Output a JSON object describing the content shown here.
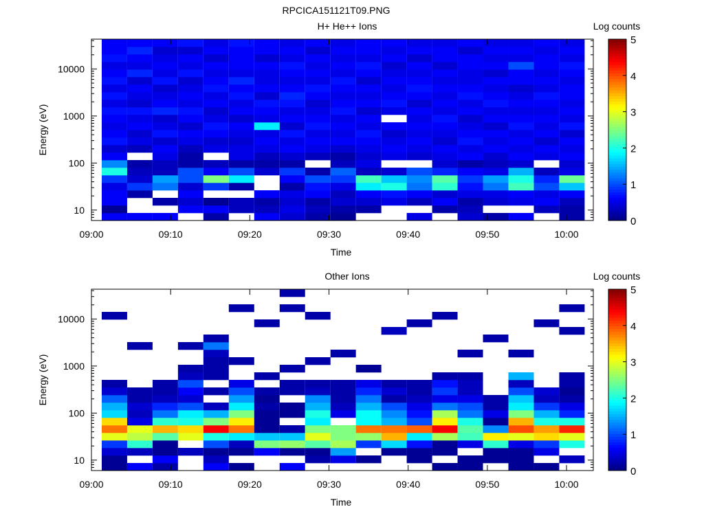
{
  "title": "RPCICA151121T09.PNG",
  "chart_data": [
    {
      "type": "heatmap",
      "title": "H+ He++ Ions",
      "xlabel": "Time",
      "ylabel": "Energy (eV)",
      "colorbar_label": "Log counts",
      "colorbar_ticks": [
        "0",
        "1",
        "2",
        "3",
        "4",
        "5"
      ],
      "clim": [
        0,
        5
      ],
      "x_ticks": [
        "09:00",
        "09:10",
        "09:20",
        "09:30",
        "09:40",
        "09:50",
        "10:00"
      ],
      "x_range_minutes_after_0900": [
        0,
        63.4
      ],
      "y_ticks": [
        "10",
        "100",
        "1000",
        "10000"
      ],
      "y_range_eV": [
        6,
        43000
      ],
      "y_scale": "log",
      "column_start_minutes": 1.3,
      "column_width_minutes": 3.21,
      "energy_bins": 24,
      "columns": [
        [
          0.6,
          0.1,
          0.6,
          0.6,
          0.5,
          0.9,
          2.0,
          1.3,
          0.6,
          0.4,
          0.7,
          0.6,
          0.5,
          0.6,
          0.7,
          0.5,
          0.7,
          0.5,
          0.7,
          0.6,
          0.5,
          0.7,
          0.6,
          0.6
        ],
        [
          0.6,
          null,
          null,
          0.2,
          0.9,
          0.4,
          0.3,
          0.2,
          null,
          0.3,
          0.5,
          0.4,
          0.6,
          0.5,
          0.7,
          0.4,
          0.5,
          0.6,
          0.4,
          0.8,
          0.5,
          0.6,
          0.8,
          0.6
        ],
        [
          0.6,
          null,
          0.2,
          null,
          1.2,
          1.4,
          0.3,
          0.3,
          0.5,
          0.6,
          0.4,
          0.7,
          0.5,
          0.4,
          0.8,
          0.6,
          0.5,
          0.4,
          0.7,
          0.5,
          0.6,
          0.5,
          0.4,
          0.6
        ],
        [
          null,
          0.6,
          0.4,
          0.6,
          0.4,
          1.0,
          1.0,
          0.2,
          0.2,
          0.3,
          0.5,
          0.6,
          0.4,
          0.6,
          0.7,
          0.5,
          0.6,
          0.5,
          0.4,
          0.7,
          0.5,
          0.6,
          0.4,
          0.7
        ],
        [
          0.2,
          0.6,
          0.1,
          null,
          0.9,
          2.5,
          0.6,
          0.3,
          null,
          0.5,
          0.4,
          0.6,
          0.7,
          0.5,
          0.4,
          0.6,
          0.5,
          0.7,
          0.6,
          0.5,
          0.6,
          0.4,
          0.6,
          0.5
        ],
        [
          null,
          0.3,
          0.3,
          null,
          0.2,
          1.8,
          1.0,
          0.2,
          0.5,
          0.5,
          0.4,
          0.5,
          0.6,
          0.4,
          0.6,
          0.5,
          0.7,
          0.6,
          0.8,
          0.5,
          0.6,
          0.6,
          0.6,
          0.7
        ],
        [
          0.6,
          0.3,
          0.2,
          0.6,
          null,
          null,
          0.4,
          0.2,
          0.3,
          0.5,
          0.6,
          0.5,
          1.8,
          0.5,
          0.6,
          0.7,
          0.4,
          0.6,
          0.5,
          0.5,
          0.6,
          0.4,
          0.6,
          0.6
        ],
        [
          0.4,
          0.5,
          0.4,
          0.5,
          0.2,
          0.6,
          0.9,
          0.2,
          0.4,
          0.6,
          0.5,
          0.7,
          0.4,
          0.6,
          0.5,
          0.7,
          0.8,
          0.6,
          0.5,
          0.6,
          0.7,
          0.5,
          0.6,
          0.5
        ],
        [
          0.2,
          0.3,
          0.2,
          0.6,
          0.7,
          1.0,
          0.2,
          null,
          0.3,
          0.5,
          0.6,
          0.5,
          0.7,
          0.6,
          0.5,
          0.4,
          0.6,
          0.7,
          0.5,
          0.6,
          0.5,
          0.6,
          0.4,
          0.6
        ],
        [
          0.1,
          0.2,
          0.4,
          0.3,
          0.5,
          0.9,
          1.1,
          0.3,
          0.2,
          0.4,
          0.6,
          0.5,
          0.6,
          0.5,
          0.7,
          0.6,
          0.5,
          0.6,
          0.7,
          0.5,
          0.6,
          0.5,
          0.6,
          0.5
        ],
        [
          null,
          0.2,
          0.4,
          0.6,
          1.8,
          2.2,
          0.3,
          0.5,
          0.4,
          0.5,
          0.6,
          0.7,
          0.5,
          0.6,
          0.4,
          0.6,
          0.5,
          0.6,
          0.4,
          0.6,
          0.7,
          0.5,
          0.6,
          0.6
        ],
        [
          null,
          null,
          0.5,
          0.7,
          2.0,
          1.6,
          0.4,
          null,
          0.5,
          0.6,
          0.5,
          0.4,
          0.6,
          null,
          0.5,
          0.7,
          0.6,
          0.5,
          0.6,
          0.5,
          0.4,
          0.6,
          0.5,
          0.6
        ],
        [
          0.5,
          null,
          0.3,
          0.6,
          1.2,
          1.3,
          1.0,
          null,
          0.4,
          0.5,
          0.6,
          0.5,
          0.6,
          0.5,
          0.6,
          0.4,
          0.6,
          0.7,
          0.6,
          0.5,
          0.6,
          0.4,
          0.6,
          0.5
        ],
        [
          null,
          0.2,
          0.6,
          0.4,
          2.1,
          2.3,
          0.8,
          0.4,
          0.5,
          0.6,
          0.4,
          0.5,
          0.6,
          0.7,
          0.5,
          0.6,
          0.5,
          0.6,
          0.5,
          0.6,
          0.4,
          0.6,
          0.6,
          0.5
        ],
        [
          0.4,
          0.3,
          0.2,
          0.5,
          0.7,
          0.9,
          0.6,
          0.2,
          0.6,
          0.5,
          0.7,
          0.6,
          0.5,
          0.4,
          0.6,
          0.5,
          0.7,
          0.6,
          0.5,
          0.5,
          0.6,
          0.6,
          0.4,
          0.6
        ],
        [
          0.2,
          null,
          0.4,
          0.5,
          1.2,
          1.4,
          0.5,
          0.3,
          0.4,
          0.6,
          0.5,
          0.6,
          0.4,
          0.6,
          0.5,
          0.7,
          0.6,
          0.5,
          0.6,
          0.4,
          0.6,
          0.5,
          0.6,
          0.5
        ],
        [
          0.6,
          null,
          0.5,
          0.6,
          2.2,
          2.0,
          1.5,
          0.4,
          0.6,
          0.5,
          0.6,
          0.5,
          0.7,
          0.6,
          0.5,
          0.6,
          0.5,
          0.4,
          0.6,
          0.6,
          1.0,
          0.5,
          0.6,
          0.5
        ],
        [
          null,
          0.3,
          0.6,
          0.5,
          1.0,
          0.8,
          0.3,
          null,
          0.5,
          0.6,
          0.4,
          0.6,
          0.5,
          0.6,
          0.5,
          0.6,
          0.7,
          0.5,
          0.6,
          0.5,
          0.6,
          0.6,
          0.5,
          0.6
        ],
        [
          0.2,
          0.2,
          0.3,
          0.6,
          1.6,
          2.4,
          0.5,
          0.4,
          0.6,
          0.5,
          0.6,
          0.4,
          0.7,
          0.5,
          0.6,
          0.5,
          0.6,
          0.6,
          0.5,
          0.6,
          0.7,
          0.5,
          0.6,
          0.5
        ]
      ]
    },
    {
      "type": "heatmap",
      "title": "Other Ions",
      "xlabel": "Time",
      "ylabel": "Energy (eV)",
      "colorbar_label": "Log counts",
      "colorbar_ticks": [
        "0",
        "1",
        "2",
        "3",
        "4",
        "5"
      ],
      "clim": [
        0,
        5
      ],
      "x_ticks": [
        "09:00",
        "09:10",
        "09:20",
        "09:30",
        "09:40",
        "09:50",
        "10:00"
      ],
      "x_range_minutes_after_0900": [
        0,
        63.4
      ],
      "y_ticks": [
        "10",
        "100",
        "1000",
        "10000"
      ],
      "y_range_eV": [
        6,
        43000
      ],
      "y_scale": "log",
      "column_start_minutes": 1.3,
      "column_width_minutes": 3.21,
      "energy_bins": 24,
      "columns": [
        [
          0.1,
          0.1,
          0.4,
          0.9,
          3.0,
          3.8,
          3.3,
          1.7,
          1.5,
          1.1,
          0.4,
          0.2,
          null,
          null,
          null,
          null,
          null,
          null,
          null,
          null,
          0.2,
          null,
          null,
          null
        ],
        [
          0.6,
          null,
          0.3,
          2.1,
          2.8,
          3.0,
          0.5,
          0.3,
          0.4,
          0.2,
          0.2,
          null,
          null,
          null,
          null,
          null,
          0.2,
          null,
          null,
          null,
          null,
          null,
          null,
          null
        ],
        [
          0.2,
          0.6,
          0.1,
          0.1,
          2.3,
          3.5,
          2.1,
          1.2,
          0.8,
          0.3,
          0.2,
          0.2,
          null,
          null,
          null,
          null,
          null,
          null,
          null,
          null,
          null,
          null,
          null,
          null
        ],
        [
          null,
          null,
          0.3,
          null,
          3.0,
          3.3,
          2.0,
          1.8,
          1.0,
          0.4,
          0.6,
          1.0,
          0.3,
          0.2,
          null,
          null,
          0.2,
          null,
          null,
          null,
          null,
          null,
          null,
          null
        ],
        [
          0.6,
          0.3,
          0.1,
          1.0,
          2.0,
          4.4,
          2.5,
          1.5,
          0.3,
          null,
          0.2,
          null,
          0.2,
          0.2,
          0.2,
          0.3,
          1.2,
          0.2,
          null,
          null,
          null,
          null,
          null,
          null
        ],
        [
          0.1,
          null,
          0.1,
          0.3,
          1.8,
          3.8,
          3.2,
          2.5,
          1.8,
          1.4,
          1.0,
          0.5,
          null,
          null,
          0.2,
          null,
          null,
          null,
          null,
          null,
          null,
          0.2,
          null,
          null
        ],
        [
          null,
          null,
          0.6,
          2.5,
          1.6,
          0.1,
          0.1,
          0.1,
          0.2,
          0.1,
          0.2,
          null,
          0.2,
          null,
          null,
          null,
          null,
          null,
          null,
          0.2,
          null,
          null,
          null,
          null
        ],
        [
          0.6,
          null,
          0.1,
          2.6,
          1.6,
          0.2,
          null,
          0.1,
          0.1,
          null,
          0.2,
          0.2,
          null,
          0.2,
          null,
          null,
          null,
          null,
          null,
          null,
          null,
          0.2,
          null,
          0.2
        ],
        [
          null,
          0.2,
          0.1,
          2.3,
          3.0,
          2.5,
          1.8,
          2.0,
          1.5,
          1.3,
          0.3,
          0.2,
          null,
          null,
          0.2,
          null,
          null,
          null,
          null,
          null,
          0.2,
          null,
          null,
          null
        ],
        [
          null,
          0.5,
          1.4,
          2.7,
          2.5,
          2.5,
          null,
          0.5,
          0.3,
          0.2,
          0.2,
          0.2,
          null,
          null,
          null,
          0.2,
          null,
          null,
          null,
          null,
          null,
          null,
          null,
          null
        ],
        [
          null,
          0.1,
          null,
          0.9,
          2.6,
          3.8,
          1.9,
          1.9,
          1.5,
          1.2,
          0.8,
          0.5,
          null,
          0.1,
          null,
          null,
          null,
          null,
          null,
          null,
          null,
          null,
          null,
          null
        ],
        [
          null,
          null,
          0.1,
          1.7,
          3.5,
          3.8,
          1.5,
          1.3,
          1.0,
          0.2,
          0.4,
          0.2,
          null,
          null,
          null,
          null,
          null,
          null,
          0.3,
          null,
          null,
          null,
          null,
          null
        ],
        [
          null,
          0.1,
          0.1,
          0.7,
          1.8,
          3.9,
          1.0,
          0.7,
          0.5,
          0.3,
          0.2,
          0.2,
          null,
          null,
          null,
          null,
          null,
          null,
          null,
          0.2,
          null,
          null,
          null,
          null
        ],
        [
          0.1,
          null,
          0.1,
          0.1,
          2.7,
          4.4,
          3.2,
          2.7,
          1.2,
          0.5,
          0.9,
          0.7,
          0.2,
          null,
          null,
          null,
          null,
          null,
          null,
          null,
          0.2,
          null,
          null,
          null
        ],
        [
          0.1,
          0.1,
          null,
          0.5,
          2.2,
          2.3,
          2.0,
          1.2,
          1.0,
          0.5,
          0.3,
          0.3,
          0.2,
          null,
          null,
          0.2,
          null,
          null,
          null,
          null,
          null,
          null,
          null,
          null
        ],
        [
          null,
          0.1,
          0.1,
          2.1,
          3.2,
          1.3,
          0.1,
          0.5,
          0.2,
          0.2,
          null,
          null,
          null,
          null,
          null,
          null,
          null,
          0.2,
          null,
          null,
          null,
          null,
          null,
          null
        ],
        [
          0.1,
          0.1,
          0.1,
          0.5,
          3.0,
          4.0,
          3.5,
          2.5,
          1.8,
          1.6,
          1.0,
          0.3,
          1.5,
          null,
          null,
          0.2,
          null,
          null,
          null,
          null,
          null,
          null,
          null,
          null
        ],
        [
          0.1,
          null,
          0.5,
          0.9,
          3.3,
          3.6,
          2.0,
          1.5,
          0.9,
          0.3,
          0.4,
          null,
          null,
          null,
          null,
          null,
          null,
          null,
          null,
          0.2,
          null,
          null,
          null,
          null
        ],
        [
          null,
          0.3,
          null,
          2.0,
          3.0,
          4.2,
          2.0,
          0.8,
          0.5,
          0.2,
          0.1,
          0.2,
          0.2,
          null,
          null,
          null,
          null,
          null,
          0.2,
          null,
          null,
          0.2,
          null,
          null
        ]
      ]
    }
  ]
}
